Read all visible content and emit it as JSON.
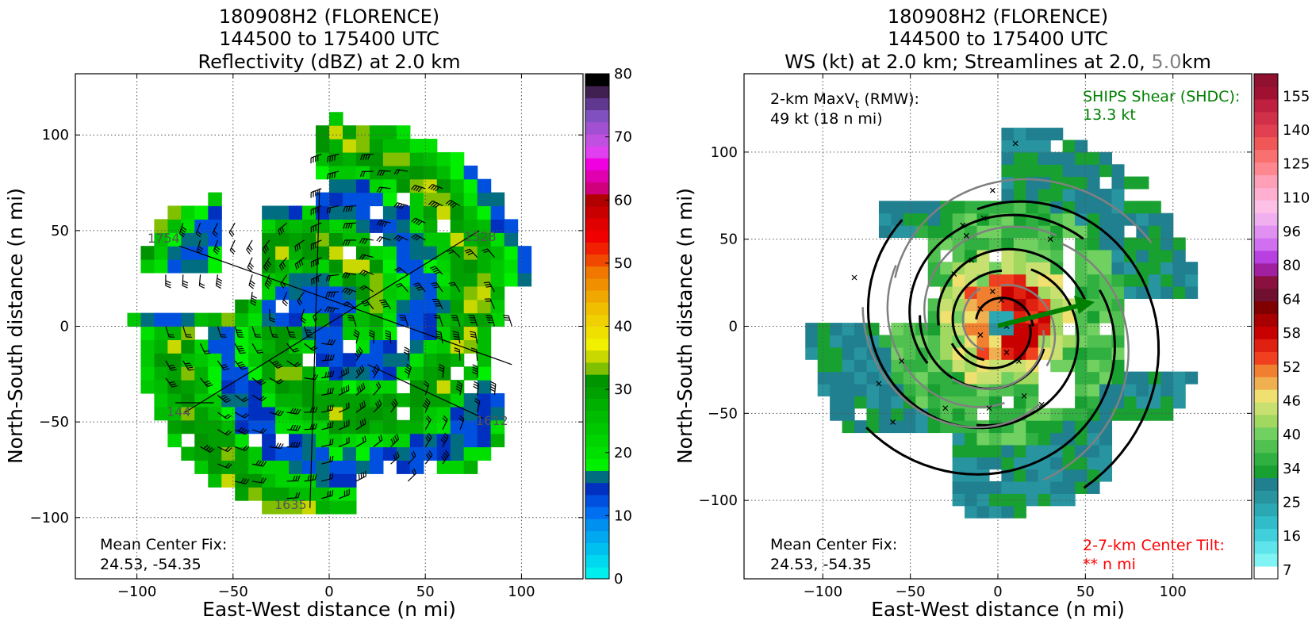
{
  "colors": {
    "reflectivity_scale": [
      "#00eeee",
      "#00d8f0",
      "#00c0f0",
      "#00a8f0",
      "#0090f0",
      "#0070f0",
      "#0050e0",
      "#0030c0",
      "#006e80",
      "#00f000",
      "#00e000",
      "#00d400",
      "#00c800",
      "#00bc00",
      "#00b000",
      "#00a000",
      "#009400",
      "#80c000",
      "#c8d800",
      "#f0f000",
      "#f0e000",
      "#f0d000",
      "#f0c000",
      "#f0a800",
      "#f09000",
      "#f07800",
      "#f04800",
      "#f02000",
      "#f00000",
      "#e00000",
      "#c80000",
      "#b00000",
      "#d0007c",
      "#e000b0",
      "#f000e0",
      "#e040f0",
      "#c050e0",
      "#a050d0",
      "#8050c0",
      "#603890",
      "#402050",
      "#000000"
    ],
    "windspeed_scale": [
      "#ffffff",
      "#80f4f4",
      "#60e4ec",
      "#40d0dc",
      "#30bcc8",
      "#2aa8b4",
      "#2894a0",
      "#208090",
      "#18a030",
      "#30b040",
      "#50c050",
      "#70d060",
      "#a0d860",
      "#c8e070",
      "#f0e070",
      "#f0b050",
      "#f08030",
      "#f04020",
      "#e02010",
      "#c80000",
      "#a80000",
      "#800000",
      "#701030",
      "#8a1040",
      "#a020a0",
      "#b840e0",
      "#d070f0",
      "#e090f0",
      "#f0b0f0",
      "#ffc0e8",
      "#ffb0d0",
      "#ffa0b8",
      "#ff8890",
      "#f87070",
      "#f05858",
      "#e04050",
      "#d03048",
      "#c02040",
      "#a01030",
      "#901030"
    ],
    "streamline_black": "#000000",
    "streamline_gray": "#808080",
    "shear_color": "#008000",
    "tilt_color": "#ff0000"
  },
  "left_panel": {
    "title_line1": "180908H2 (FLORENCE)",
    "title_line2": "144500 to 175400 UTC",
    "title_line3": "Reflectivity (dBZ) at 2.0 km",
    "xlabel": "East-West distance (n mi)",
    "ylabel": "North-South distance (n mi)",
    "mean_center_label": "Mean Center Fix:",
    "mean_center_value": "24.53, -54.35",
    "flight_labels": [
      "1754",
      "1528",
      "144",
      "1612",
      "1635"
    ]
  },
  "right_panel": {
    "title_line1": "180908H2 (FLORENCE)",
    "title_line2": "144500 to 175400 UTC",
    "title_line3_a": "WS (kt) at 2.0 km; Streamlines at 2.0, ",
    "title_line3_b": "5.0",
    "title_line3_c": "km",
    "xlabel": "East-West distance (n mi)",
    "ylabel": "North-South distance (n mi)",
    "maxvt_label": "2-km MaxV",
    "maxvt_sub": "t",
    "maxvt_rmw": " (RMW):",
    "maxvt_value": "49 kt (18 n mi)",
    "ships_label": "SHIPS Shear (SHDC):",
    "ships_value": "13.3 kt",
    "mean_center_label": "Mean Center Fix:",
    "mean_center_value": "24.53, -54.35",
    "tilt_label": "2-7-km Center Tilt:",
    "tilt_value": "** n mi"
  },
  "chart_data": [
    {
      "type": "heatmap",
      "title": "180908H2 (FLORENCE) 144500 to 175400 UTC Reflectivity (dBZ) at 2.0 km",
      "xlabel": "East-West distance (n mi)",
      "ylabel": "North-South distance (n mi)",
      "xlim": [
        -132,
        132
      ],
      "ylim": [
        -132,
        132
      ],
      "x_ticks": [
        -100,
        -50,
        0,
        50,
        100
      ],
      "y_ticks": [
        -100,
        -50,
        0,
        50,
        100
      ],
      "x_tick_labels": [
        "−100",
        "−50",
        "0",
        "50",
        "100"
      ],
      "y_tick_labels": [
        "−100",
        "−50",
        "0",
        "50",
        "100"
      ],
      "grid": true,
      "colorbar_range": [
        0,
        80
      ],
      "colorbar_ticks": [
        0,
        10,
        20,
        30,
        40,
        50,
        60,
        70,
        80
      ],
      "colorbar_tick_labels": [
        "0",
        "10",
        "20",
        "30",
        "40",
        "50",
        "60",
        "70",
        "80"
      ],
      "center": [
        0,
        0
      ]
    },
    {
      "type": "heatmap",
      "title": "180908H2 (FLORENCE) 144500 to 175400 UTC WS (kt) at 2.0 km; Streamlines at 2.0, 5.0km",
      "xlabel": "East-West distance (n mi)",
      "ylabel": "North-South distance (n mi)",
      "xlim": [
        -145,
        145
      ],
      "ylim": [
        -145,
        145
      ],
      "x_ticks": [
        -100,
        -50,
        0,
        50,
        100
      ],
      "y_ticks": [
        -100,
        -50,
        0,
        50,
        100
      ],
      "x_tick_labels": [
        "−100",
        "−50",
        "0",
        "50",
        "100"
      ],
      "y_tick_labels": [
        "−100",
        "−50",
        "0",
        "50",
        "100"
      ],
      "grid": true,
      "colorbar_ticks": [
        7,
        16,
        25,
        34,
        40,
        46,
        52,
        58,
        64,
        80,
        96,
        110,
        125,
        140,
        155
      ],
      "colorbar_tick_labels": [
        "7",
        "16",
        "25",
        "34",
        "40",
        "46",
        "52",
        "58",
        "64",
        "80",
        "96",
        "110",
        "125",
        "140",
        "155"
      ],
      "shear_vector_kt": 13.3,
      "max_wind_kt": 49,
      "rmw_nmi": 18
    }
  ]
}
